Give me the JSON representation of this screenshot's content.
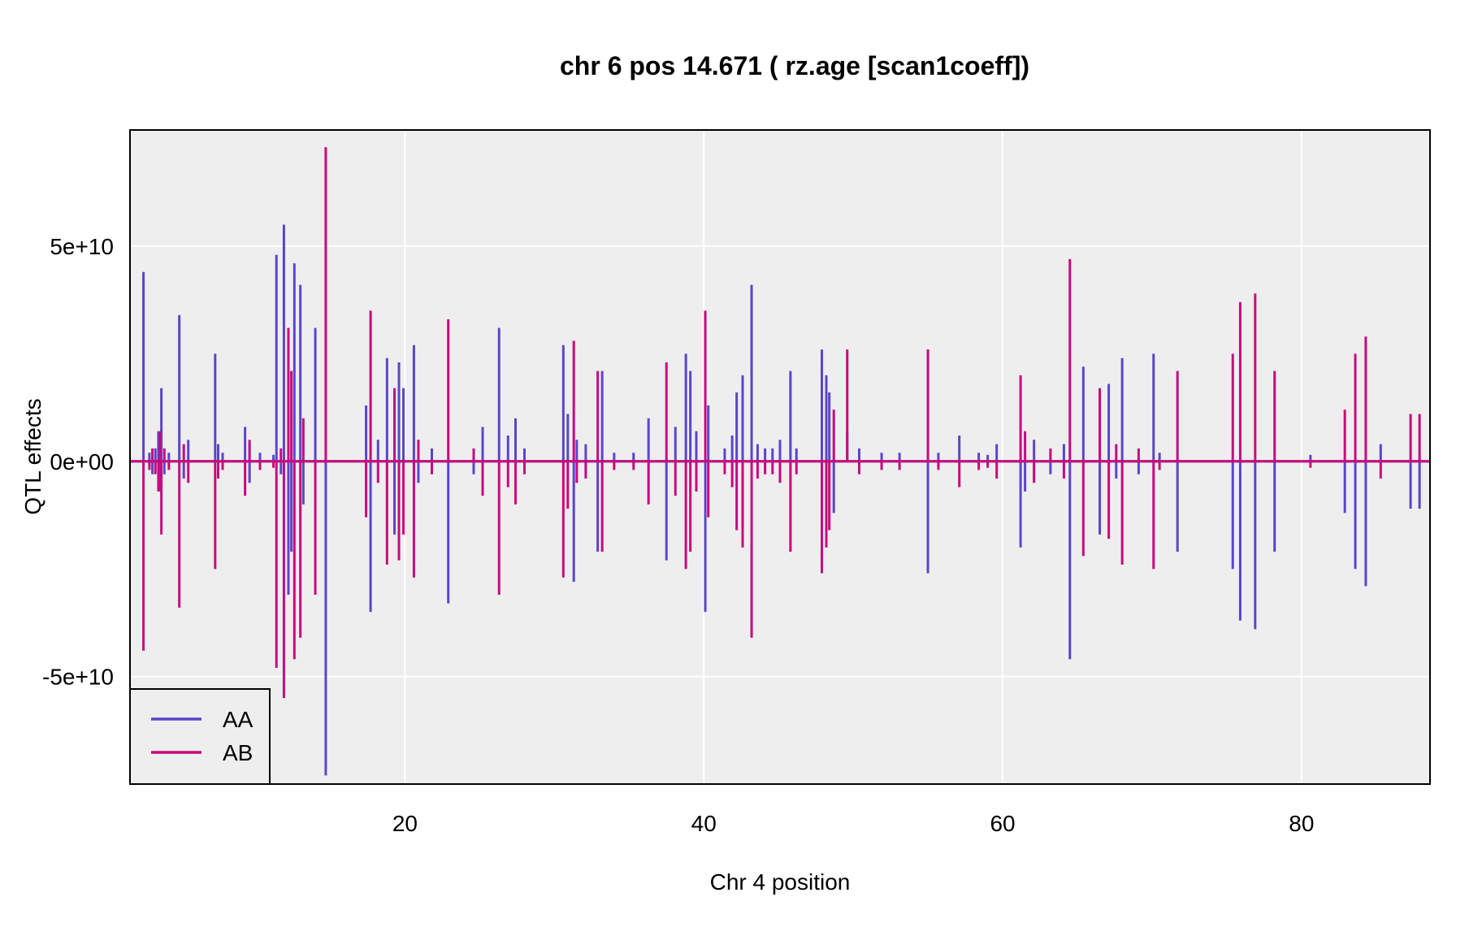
{
  "chart_data": {
    "type": "line",
    "title": "chr 6 pos 14.671 ( rz.age  [scan1coeff])",
    "xlabel": "Chr 4 position",
    "ylabel": "QTL effects",
    "xlim": [
      1.6,
      88.6
    ],
    "ylim": [
      -75000000000,
      77000000000
    ],
    "x_ticks": [
      20,
      40,
      60,
      80
    ],
    "x_tick_labels": [
      "20",
      "40",
      "60",
      "80"
    ],
    "y_ticks": [
      50000000000,
      0,
      -50000000000
    ],
    "y_tick_labels": [
      "5e+10",
      "0e+00",
      "-5e+10"
    ],
    "grid": true,
    "background": "#eeeeef",
    "legend_position": "bottom-left",
    "series": [
      {
        "name": "AA",
        "color": "#5b45c8",
        "spikes": [
          [
            2.5,
            44000000000
          ],
          [
            2.9,
            2000000000
          ],
          [
            3.1,
            -3000000000
          ],
          [
            3.3,
            3000000000
          ],
          [
            3.5,
            7000000000
          ],
          [
            3.6,
            -7000000000
          ],
          [
            3.7,
            17000000000
          ],
          [
            3.9,
            -3000000000
          ],
          [
            4.2,
            2000000000
          ],
          [
            4.9,
            34000000000
          ],
          [
            5.2,
            -4000000000
          ],
          [
            5.5,
            5000000000
          ],
          [
            7.3,
            25000000000
          ],
          [
            7.5,
            4000000000
          ],
          [
            7.8,
            2000000000
          ],
          [
            9.3,
            8000000000
          ],
          [
            9.6,
            -5000000000
          ],
          [
            10.3,
            2000000000
          ],
          [
            11.2,
            1500000000
          ],
          [
            11.4,
            48000000000
          ],
          [
            11.7,
            -3000000000
          ],
          [
            11.9,
            55000000000
          ],
          [
            12.2,
            -31000000000
          ],
          [
            12.4,
            -21000000000
          ],
          [
            12.6,
            46000000000
          ],
          [
            13.0,
            41000000000
          ],
          [
            13.2,
            -10000000000
          ],
          [
            14.0,
            31000000000
          ],
          [
            14.7,
            -73000000000
          ],
          [
            17.4,
            13000000000
          ],
          [
            17.7,
            -35000000000
          ],
          [
            18.2,
            5000000000
          ],
          [
            18.8,
            24000000000
          ],
          [
            19.3,
            -17000000000
          ],
          [
            19.6,
            23000000000
          ],
          [
            19.9,
            17000000000
          ],
          [
            20.6,
            27000000000
          ],
          [
            20.9,
            -5000000000
          ],
          [
            21.8,
            3000000000
          ],
          [
            22.9,
            -33000000000
          ],
          [
            24.6,
            -3000000000
          ],
          [
            25.2,
            8000000000
          ],
          [
            26.3,
            31000000000
          ],
          [
            26.9,
            6000000000
          ],
          [
            27.4,
            10000000000
          ],
          [
            28.0,
            3000000000
          ],
          [
            30.6,
            27000000000
          ],
          [
            30.9,
            11000000000
          ],
          [
            31.3,
            -28000000000
          ],
          [
            31.5,
            5000000000
          ],
          [
            32.1,
            4000000000
          ],
          [
            32.9,
            -21000000000
          ],
          [
            33.2,
            21000000000
          ],
          [
            34.0,
            2000000000
          ],
          [
            35.3,
            2000000000
          ],
          [
            36.3,
            10000000000
          ],
          [
            37.5,
            -23000000000
          ],
          [
            38.1,
            8000000000
          ],
          [
            38.8,
            25000000000
          ],
          [
            39.1,
            21000000000
          ],
          [
            39.5,
            7000000000
          ],
          [
            40.1,
            -35000000000
          ],
          [
            40.3,
            13000000000
          ],
          [
            41.4,
            3000000000
          ],
          [
            41.9,
            6000000000
          ],
          [
            42.2,
            16000000000
          ],
          [
            42.6,
            20000000000
          ],
          [
            43.2,
            41000000000
          ],
          [
            43.6,
            4000000000
          ],
          [
            44.1,
            3000000000
          ],
          [
            44.6,
            3000000000
          ],
          [
            45.1,
            5000000000
          ],
          [
            45.8,
            21000000000
          ],
          [
            46.2,
            3000000000
          ],
          [
            47.9,
            26000000000
          ],
          [
            48.2,
            20000000000
          ],
          [
            48.4,
            16000000000
          ],
          [
            48.7,
            -12000000000
          ],
          [
            49.6,
            7000000000
          ],
          [
            50.4,
            3000000000
          ],
          [
            51.9,
            2000000000
          ],
          [
            53.1,
            2000000000
          ],
          [
            55.0,
            -26000000000
          ],
          [
            55.7,
            2000000000
          ],
          [
            57.1,
            6000000000
          ],
          [
            58.4,
            2000000000
          ],
          [
            59.0,
            1500000000
          ],
          [
            59.6,
            4000000000
          ],
          [
            61.2,
            -20000000000
          ],
          [
            61.5,
            -7000000000
          ],
          [
            62.1,
            5000000000
          ],
          [
            63.2,
            -3000000000
          ],
          [
            64.1,
            4000000000
          ],
          [
            64.5,
            -46000000000
          ],
          [
            65.4,
            22000000000
          ],
          [
            66.5,
            -17000000000
          ],
          [
            67.1,
            18000000000
          ],
          [
            67.6,
            -4000000000
          ],
          [
            68.0,
            24000000000
          ],
          [
            69.1,
            -3000000000
          ],
          [
            70.1,
            25000000000
          ],
          [
            70.5,
            2000000000
          ],
          [
            71.7,
            -21000000000
          ],
          [
            75.4,
            -25000000000
          ],
          [
            75.9,
            -37000000000
          ],
          [
            76.9,
            -39000000000
          ],
          [
            78.2,
            -21000000000
          ],
          [
            80.6,
            1500000000
          ],
          [
            82.9,
            -12000000000
          ],
          [
            83.6,
            -25000000000
          ],
          [
            84.3,
            -29000000000
          ],
          [
            85.3,
            4000000000
          ],
          [
            87.3,
            -11000000000
          ],
          [
            87.9,
            -11000000000
          ]
        ]
      },
      {
        "name": "AB",
        "color": "#c8087c",
        "spikes": [
          [
            2.5,
            -44000000000
          ],
          [
            2.9,
            -2000000000
          ],
          [
            3.1,
            3000000000
          ],
          [
            3.3,
            -3000000000
          ],
          [
            3.5,
            -7000000000
          ],
          [
            3.6,
            7000000000
          ],
          [
            3.7,
            -17000000000
          ],
          [
            3.9,
            3000000000
          ],
          [
            4.2,
            -2000000000
          ],
          [
            4.9,
            -34000000000
          ],
          [
            5.2,
            4000000000
          ],
          [
            5.5,
            -5000000000
          ],
          [
            7.3,
            -25000000000
          ],
          [
            7.5,
            -4000000000
          ],
          [
            7.8,
            -2000000000
          ],
          [
            9.3,
            -8000000000
          ],
          [
            9.6,
            5000000000
          ],
          [
            10.3,
            -2000000000
          ],
          [
            11.2,
            -1500000000
          ],
          [
            11.4,
            -48000000000
          ],
          [
            11.7,
            3000000000
          ],
          [
            11.9,
            -55000000000
          ],
          [
            12.2,
            31000000000
          ],
          [
            12.4,
            21000000000
          ],
          [
            12.6,
            -46000000000
          ],
          [
            13.0,
            -41000000000
          ],
          [
            13.2,
            10000000000
          ],
          [
            14.0,
            -31000000000
          ],
          [
            14.7,
            73000000000
          ],
          [
            17.4,
            -13000000000
          ],
          [
            17.7,
            35000000000
          ],
          [
            18.2,
            -5000000000
          ],
          [
            18.8,
            -24000000000
          ],
          [
            19.3,
            17000000000
          ],
          [
            19.6,
            -23000000000
          ],
          [
            19.9,
            -17000000000
          ],
          [
            20.6,
            -27000000000
          ],
          [
            20.9,
            5000000000
          ],
          [
            21.8,
            -3000000000
          ],
          [
            22.9,
            33000000000
          ],
          [
            24.6,
            3000000000
          ],
          [
            25.2,
            -8000000000
          ],
          [
            26.3,
            -31000000000
          ],
          [
            26.9,
            -6000000000
          ],
          [
            27.4,
            -10000000000
          ],
          [
            28.0,
            -3000000000
          ],
          [
            30.6,
            -27000000000
          ],
          [
            30.9,
            -11000000000
          ],
          [
            31.3,
            28000000000
          ],
          [
            31.5,
            -5000000000
          ],
          [
            32.1,
            -4000000000
          ],
          [
            32.9,
            21000000000
          ],
          [
            33.2,
            -21000000000
          ],
          [
            34.0,
            -2000000000
          ],
          [
            35.3,
            -2000000000
          ],
          [
            36.3,
            -10000000000
          ],
          [
            37.5,
            23000000000
          ],
          [
            38.1,
            -8000000000
          ],
          [
            38.8,
            -25000000000
          ],
          [
            39.1,
            -21000000000
          ],
          [
            39.5,
            -7000000000
          ],
          [
            40.1,
            35000000000
          ],
          [
            40.3,
            -13000000000
          ],
          [
            41.4,
            -3000000000
          ],
          [
            41.9,
            -6000000000
          ],
          [
            42.2,
            -16000000000
          ],
          [
            42.6,
            -20000000000
          ],
          [
            43.2,
            -41000000000
          ],
          [
            43.6,
            -4000000000
          ],
          [
            44.1,
            -3000000000
          ],
          [
            44.6,
            -3000000000
          ],
          [
            45.1,
            -5000000000
          ],
          [
            45.8,
            -21000000000
          ],
          [
            46.2,
            -3000000000
          ],
          [
            47.9,
            -26000000000
          ],
          [
            48.2,
            -20000000000
          ],
          [
            48.4,
            -16000000000
          ],
          [
            48.7,
            12000000000
          ],
          [
            49.6,
            26000000000
          ],
          [
            50.4,
            -3000000000
          ],
          [
            51.9,
            -2000000000
          ],
          [
            53.1,
            -2000000000
          ],
          [
            55.0,
            26000000000
          ],
          [
            55.7,
            -2000000000
          ],
          [
            57.1,
            -6000000000
          ],
          [
            58.4,
            -2000000000
          ],
          [
            59.0,
            -1500000000
          ],
          [
            59.6,
            -4000000000
          ],
          [
            61.2,
            20000000000
          ],
          [
            61.5,
            7000000000
          ],
          [
            62.1,
            -5000000000
          ],
          [
            63.2,
            3000000000
          ],
          [
            64.1,
            -4000000000
          ],
          [
            64.5,
            47000000000
          ],
          [
            65.4,
            -22000000000
          ],
          [
            66.5,
            17000000000
          ],
          [
            67.1,
            -18000000000
          ],
          [
            67.6,
            4000000000
          ],
          [
            68.0,
            -24000000000
          ],
          [
            69.1,
            3000000000
          ],
          [
            70.1,
            -25000000000
          ],
          [
            70.5,
            -2000000000
          ],
          [
            71.7,
            21000000000
          ],
          [
            75.4,
            25000000000
          ],
          [
            75.9,
            37000000000
          ],
          [
            76.9,
            39000000000
          ],
          [
            78.2,
            21000000000
          ],
          [
            80.6,
            -1500000000
          ],
          [
            82.9,
            12000000000
          ],
          [
            83.6,
            25000000000
          ],
          [
            84.3,
            29000000000
          ],
          [
            85.3,
            -4000000000
          ],
          [
            87.3,
            11000000000
          ],
          [
            87.9,
            11000000000
          ]
        ]
      }
    ]
  }
}
